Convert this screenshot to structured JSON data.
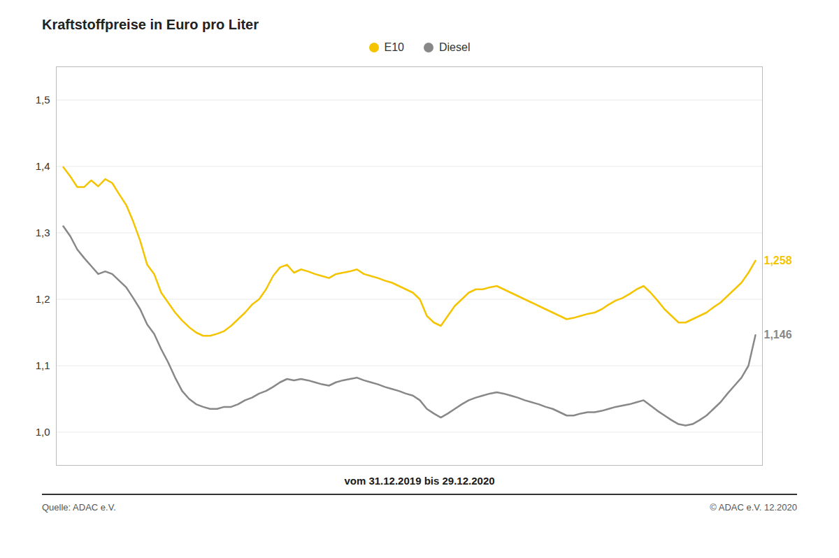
{
  "chart_data": {
    "type": "line",
    "title": "Kraftstoffpreise in Euro pro Liter",
    "xlabel": "vom 31.12.2019 bis 29.12.2020",
    "footnotes": [
      "Quelle: ADAC e.V.",
      "© ADAC e.V. 12.2020"
    ],
    "series": [
      {
        "name": "E10",
        "color": "#F5C400",
        "values": [
          1.399,
          1.385,
          1.369,
          1.369,
          1.379,
          1.37,
          1.381,
          1.375,
          1.358,
          1.342,
          1.317,
          1.288,
          1.252,
          1.238,
          1.21,
          1.195,
          1.18,
          1.168,
          1.158,
          1.15,
          1.145,
          1.145,
          1.148,
          1.152,
          1.16,
          1.17,
          1.18,
          1.192,
          1.2,
          1.215,
          1.235,
          1.248,
          1.252,
          1.24,
          1.245,
          1.242,
          1.238,
          1.235,
          1.232,
          1.238,
          1.24,
          1.242,
          1.245,
          1.238,
          1.235,
          1.232,
          1.228,
          1.225,
          1.22,
          1.215,
          1.21,
          1.2,
          1.175,
          1.165,
          1.16,
          1.175,
          1.19,
          1.2,
          1.21,
          1.215,
          1.215,
          1.218,
          1.22,
          1.215,
          1.21,
          1.205,
          1.2,
          1.195,
          1.19,
          1.185,
          1.18,
          1.175,
          1.17,
          1.172,
          1.175,
          1.178,
          1.18,
          1.185,
          1.192,
          1.198,
          1.202,
          1.208,
          1.215,
          1.22,
          1.21,
          1.198,
          1.185,
          1.175,
          1.165,
          1.165,
          1.17,
          1.175,
          1.18,
          1.188,
          1.195,
          1.205,
          1.215,
          1.225,
          1.24,
          1.258
        ]
      },
      {
        "name": "Diesel",
        "color": "#888888",
        "values": [
          1.31,
          1.295,
          1.275,
          1.262,
          1.25,
          1.238,
          1.242,
          1.238,
          1.228,
          1.218,
          1.202,
          1.185,
          1.162,
          1.148,
          1.125,
          1.105,
          1.082,
          1.062,
          1.05,
          1.042,
          1.038,
          1.035,
          1.035,
          1.038,
          1.038,
          1.042,
          1.048,
          1.052,
          1.058,
          1.062,
          1.068,
          1.075,
          1.08,
          1.078,
          1.08,
          1.078,
          1.075,
          1.072,
          1.07,
          1.075,
          1.078,
          1.08,
          1.082,
          1.078,
          1.075,
          1.072,
          1.068,
          1.065,
          1.062,
          1.058,
          1.055,
          1.048,
          1.035,
          1.028,
          1.022,
          1.028,
          1.035,
          1.042,
          1.048,
          1.052,
          1.055,
          1.058,
          1.06,
          1.058,
          1.055,
          1.052,
          1.048,
          1.045,
          1.042,
          1.038,
          1.035,
          1.03,
          1.025,
          1.025,
          1.028,
          1.03,
          1.03,
          1.032,
          1.035,
          1.038,
          1.04,
          1.042,
          1.045,
          1.048,
          1.04,
          1.032,
          1.025,
          1.018,
          1.012,
          1.01,
          1.012,
          1.018,
          1.025,
          1.035,
          1.045,
          1.058,
          1.07,
          1.082,
          1.1,
          1.146
        ]
      }
    ],
    "annotations": [
      {
        "text": "1,258",
        "series": "E10"
      },
      {
        "text": "1,146",
        "series": "Diesel"
      }
    ],
    "ylim": [
      0.95,
      1.55
    ],
    "yticks": [
      {
        "value": 1.0,
        "label": "1,0"
      },
      {
        "value": 1.1,
        "label": "1,1"
      },
      {
        "value": 1.2,
        "label": "1,2"
      },
      {
        "value": 1.3,
        "label": "1,3"
      },
      {
        "value": 1.4,
        "label": "1,4"
      },
      {
        "value": 1.5,
        "label": "1,5"
      }
    ],
    "grid": true,
    "legend": "top",
    "tick_labels": "y"
  }
}
